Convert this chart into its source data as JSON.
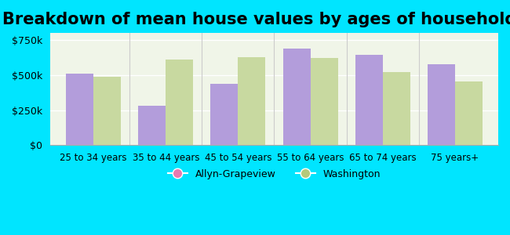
{
  "title": "Breakdown of mean house values by ages of householders",
  "categories": [
    "25 to 34 years",
    "35 to 44 years",
    "45 to 54 years",
    "55 to 64 years",
    "65 to 74 years",
    "75 years+"
  ],
  "allyn": [
    510000,
    280000,
    440000,
    690000,
    645000,
    580000
  ],
  "washington": [
    490000,
    610000,
    625000,
    620000,
    520000,
    455000
  ],
  "allyn_color": "#b39ddb",
  "washington_color": "#c8d9a0",
  "background_outer": "#00e5ff",
  "background_inner": "#f0f5e8",
  "title_fontsize": 15,
  "ylim": [
    0,
    800000
  ],
  "yticks": [
    0,
    250000,
    500000,
    750000
  ],
  "ytick_labels": [
    "$0",
    "$250k",
    "$500k",
    "$750k"
  ],
  "legend_allyn": "Allyn-Grapeview",
  "legend_washington": "Washington",
  "bar_width": 0.38,
  "allyn_marker_color": "#e77ab0",
  "washington_marker_color": "#b5c97a"
}
